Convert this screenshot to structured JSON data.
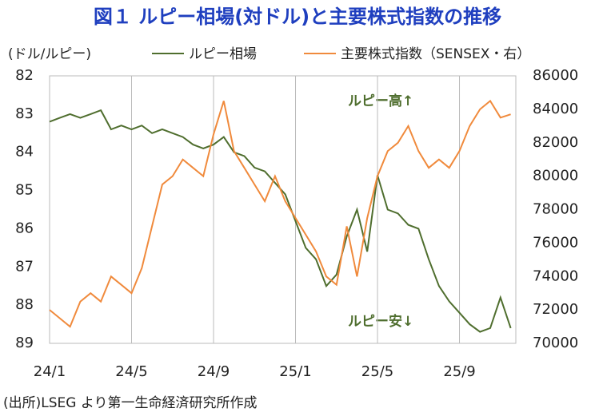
{
  "chart_data": {
    "type": "line",
    "title": "図１ ルピー相場(対ドル)と主要株式指数の推移",
    "y_label": "(ドル/ルピー)",
    "source": "(出所)LSEG より第一生命経済研究所作成",
    "annotations": [
      "ルピー高↑",
      "ルピー安↓"
    ],
    "categories": [
      "24/1",
      null,
      null,
      null,
      null,
      null,
      null,
      null,
      "24/5",
      null,
      null,
      null,
      null,
      null,
      null,
      null,
      "24/9",
      null,
      null,
      null,
      null,
      null,
      null,
      null,
      "25/1",
      null,
      null,
      null,
      null,
      null,
      null,
      null,
      "25/5",
      null,
      null,
      null,
      null,
      null,
      null,
      null,
      "25/9",
      null,
      null,
      null,
      null,
      null
    ],
    "series": [
      {
        "name": "ルピー相場",
        "color": "#4f6e2e",
        "values": [
          83.2,
          83.1,
          83.0,
          83.1,
          83.0,
          82.9,
          83.4,
          83.3,
          83.4,
          83.3,
          83.5,
          83.4,
          83.5,
          83.6,
          83.8,
          83.9,
          83.8,
          83.6,
          84.0,
          84.1,
          84.4,
          84.5,
          84.8,
          85.1,
          85.8,
          86.5,
          86.8,
          87.5,
          87.2,
          86.2,
          85.5,
          86.6,
          84.6,
          85.5,
          85.6,
          85.9,
          86.0,
          86.8,
          87.5,
          87.9,
          88.2,
          88.5,
          88.7,
          88.6,
          87.8,
          88.6
        ]
      },
      {
        "name": "主要株式指数（SENSEX・右）",
        "color": "#f08a3c",
        "axis": "y2",
        "values": [
          72000,
          71500,
          71000,
          72500,
          73000,
          72500,
          74000,
          73500,
          73000,
          74500,
          77000,
          79500,
          80000,
          81000,
          80500,
          80000,
          82500,
          84500,
          81500,
          80500,
          79500,
          78500,
          80000,
          78500,
          77500,
          76500,
          75500,
          74000,
          73500,
          77000,
          74000,
          77500,
          80000,
          81500,
          82000,
          83000,
          81500,
          80500,
          81000,
          80500,
          81500,
          83000,
          84000,
          84500,
          83500,
          83700
        ]
      }
    ],
    "ylim": [
      89,
      82
    ],
    "yticks": [
      82,
      83,
      84,
      85,
      86,
      87,
      88,
      89
    ],
    "y2lim": [
      70000,
      86000
    ],
    "y2ticks": [
      70000,
      72000,
      74000,
      76000,
      78000,
      80000,
      82000,
      84000,
      86000
    ],
    "grid": true
  }
}
